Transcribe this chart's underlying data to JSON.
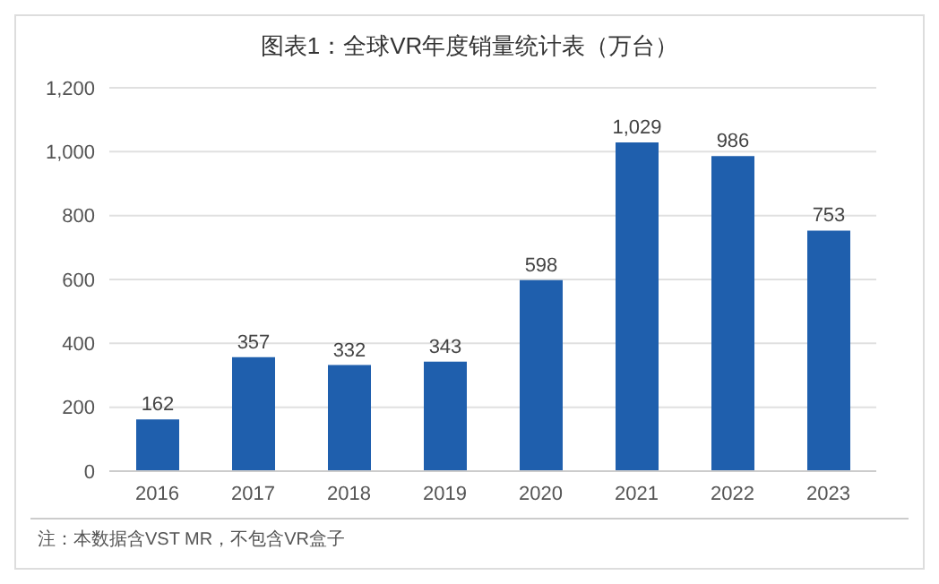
{
  "chart_data": {
    "type": "bar",
    "title": "图表1：全球VR年度销量统计表（万台）",
    "categories": [
      "2016",
      "2017",
      "2018",
      "2019",
      "2020",
      "2021",
      "2022",
      "2023"
    ],
    "values": [
      162,
      357,
      332,
      343,
      598,
      1029,
      986,
      753
    ],
    "color": "#1f5fad",
    "ylim": [
      0,
      1200
    ],
    "yticks": [
      0,
      200,
      400,
      600,
      800,
      {
        "value": 1000,
        "label": "1,000"
      },
      {
        "value": 1200,
        "label": "1,200"
      }
    ],
    "grid": "y",
    "value_labels": [
      "162",
      "357",
      "332",
      "343",
      "598",
      "1,029",
      "986",
      "753"
    ],
    "annotations": [
      "注：本数据含VST MR，不包含VR盒子"
    ]
  }
}
